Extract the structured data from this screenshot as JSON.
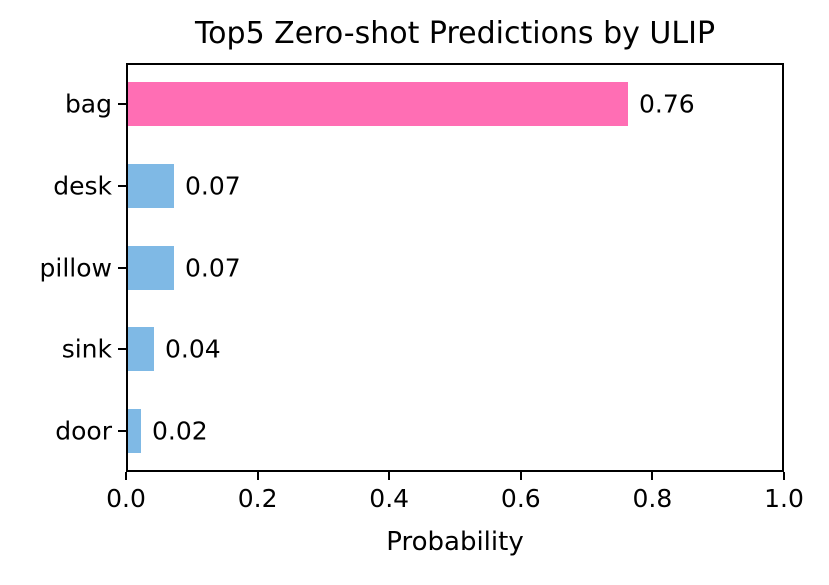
{
  "chart_data": {
    "type": "bar",
    "orientation": "horizontal",
    "title": "Top5 Zero-shot Predictions by ULIP",
    "categories": [
      "bag",
      "desk",
      "pillow",
      "sink",
      "door"
    ],
    "values": [
      0.76,
      0.07,
      0.07,
      0.04,
      0.02
    ],
    "value_labels": [
      "0.76",
      "0.07",
      "0.07",
      "0.04",
      "0.02"
    ],
    "bar_colors": [
      "#FF6EB4",
      "#7FB9E5",
      "#7FB9E5",
      "#7FB9E5",
      "#7FB9E5"
    ],
    "xlabel": "Probability",
    "ylabel": "",
    "xlim": [
      0.0,
      1.0
    ],
    "x_ticks": [
      0.0,
      0.2,
      0.4,
      0.6,
      0.8,
      1.0
    ],
    "x_tick_labels": [
      "0.0",
      "0.2",
      "0.4",
      "0.6",
      "0.8",
      "1.0"
    ],
    "grid": false,
    "legend_position": "none"
  },
  "colors": {
    "highlight_bar": "#FF6EB4",
    "default_bar": "#7FB9E5",
    "axis": "#000000",
    "text": "#000000",
    "background": "#FFFFFF"
  }
}
